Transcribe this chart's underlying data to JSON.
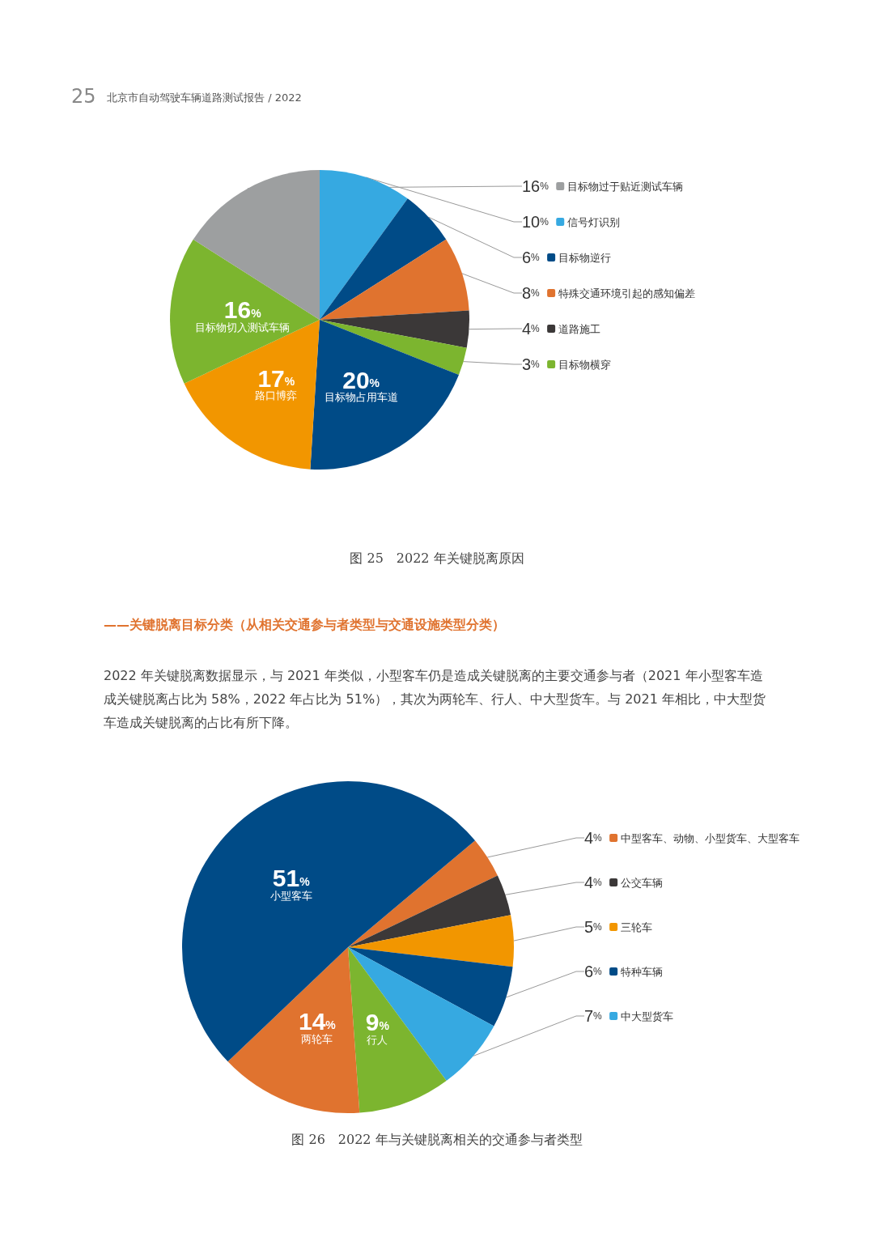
{
  "chart_data": [
    {
      "type": "pie",
      "title": "图 25　2022 年关键脱离原因",
      "annotations": [
        "25",
        "北京市自动驾驶车辆道路测试报告 / 2022"
      ],
      "categories": [
        "信号灯识别",
        "目标物逆行",
        "特殊交通环境引起的感知偏差",
        "道路施工",
        "目标物横穿",
        "目标物占用车道",
        "路口博弈",
        "目标物切入测试车辆",
        "目标物过于贴近测试车辆"
      ],
      "values": [
        10,
        6,
        8,
        4,
        3,
        20,
        17,
        16,
        16
      ],
      "value_labels": [
        "10%",
        "6%",
        "8%",
        "4%",
        "3%",
        "20%",
        "17%",
        "16%",
        "16%"
      ],
      "colors": [
        "#36a9e1",
        "#004b87",
        "#e0732f",
        "#3b3838",
        "#7cb52f",
        "#004b87",
        "#f29600",
        "#7cb52f",
        "#9d9fa0"
      ],
      "legend": "right"
    },
    {
      "type": "pie",
      "title": "图 26　2022 年与关键脱离相关的交通参与者类型",
      "subtitle": "——关键脱离目标分类（从相关交通参与者类型与交通设施类型分类）",
      "annotations": [
        "2022 年关键脱离数据显示，与 2021 年类似，小型客车仍是造成关键脱离的主要交通参与者（2021 年小型客车造成关键脱离占比为 58%，2022 年占比为 51%），其次为两轮车、行人、中大型货车。与 2021 年相比，中大型货车造成关键脱离的占比有所下降。"
      ],
      "categories": [
        "中型客车、动物、小型货车、大型客车",
        "公交车辆",
        "三轮车",
        "特种车辆",
        "中大型货车",
        "行人",
        "两轮车",
        "小型客车"
      ],
      "values": [
        4,
        4,
        5,
        6,
        7,
        9,
        14,
        51
      ],
      "value_labels": [
        "4%",
        "4%",
        "5%",
        "6%",
        "7%",
        "9%",
        "14%",
        "51%"
      ],
      "colors": [
        "#e0732f",
        "#3b3838",
        "#f29600",
        "#004b87",
        "#36a9e1",
        "#7cb52f",
        "#e0732f",
        "#004b87"
      ],
      "legend": "right"
    }
  ]
}
